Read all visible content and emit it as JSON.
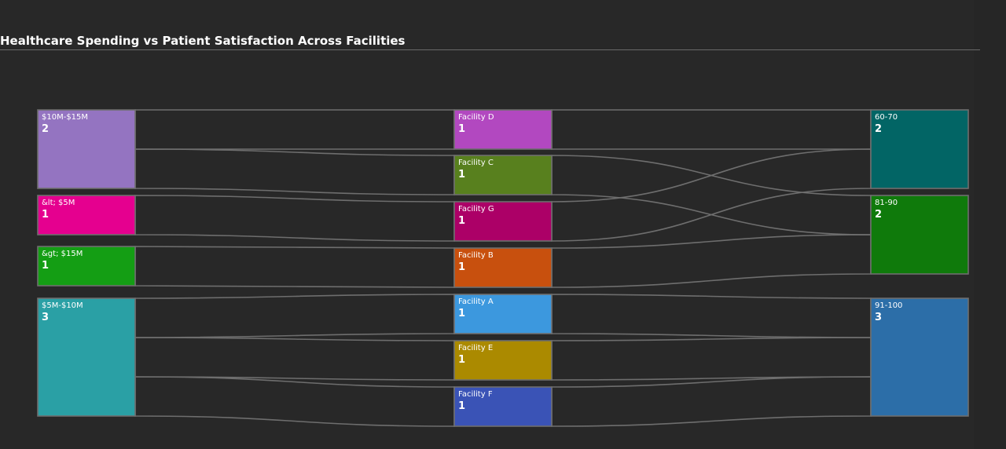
{
  "title": "Healthcare Spending vs Patient Satisfaction Across Facilities",
  "colors": {
    "background": "#282828",
    "link_stroke": "#6e6e6e",
    "node_border": "#6e6e6e"
  },
  "chart_data": {
    "type": "sankey",
    "columns": [
      "spending",
      "facility",
      "satisfaction"
    ],
    "nodes": [
      {
        "id": "s10_15",
        "label": "$10M-$15M",
        "value": 2,
        "column": 0,
        "color": "#9474c1"
      },
      {
        "id": "slt5",
        "label": "&lt; $5M",
        "value": 1,
        "column": 0,
        "color": "#e5008f"
      },
      {
        "id": "sgt15",
        "label": "&gt; $15M",
        "value": 1,
        "column": 0,
        "color": "#149e14"
      },
      {
        "id": "s5_10",
        "label": "$5M-$10M",
        "value": 3,
        "column": 0,
        "color": "#2aa0a5"
      },
      {
        "id": "fD",
        "label": "Facility D",
        "value": 1,
        "column": 1,
        "color": "#b248c0"
      },
      {
        "id": "fC",
        "label": "Facility C",
        "value": 1,
        "column": 1,
        "color": "#58801e"
      },
      {
        "id": "fG",
        "label": "Facility G",
        "value": 1,
        "column": 1,
        "color": "#ac0067"
      },
      {
        "id": "fB",
        "label": "Facility B",
        "value": 1,
        "column": 1,
        "color": "#c8500e"
      },
      {
        "id": "fA",
        "label": "Facility A",
        "value": 1,
        "column": 1,
        "color": "#3c98de"
      },
      {
        "id": "fE",
        "label": "Facility E",
        "value": 1,
        "column": 1,
        "color": "#ab8a00"
      },
      {
        "id": "fF",
        "label": "Facility F",
        "value": 1,
        "column": 1,
        "color": "#3a53b6"
      },
      {
        "id": "r60_70",
        "label": "60-70",
        "value": 2,
        "column": 2,
        "color": "#026565"
      },
      {
        "id": "r81_90",
        "label": "81-90",
        "value": 2,
        "column": 2,
        "color": "#0f7a0b"
      },
      {
        "id": "r91_100",
        "label": "91-100",
        "value": 3,
        "column": 2,
        "color": "#2c6ea8"
      }
    ],
    "links": [
      {
        "source": "s10_15",
        "target": "fD",
        "value": 1
      },
      {
        "source": "s10_15",
        "target": "fC",
        "value": 1
      },
      {
        "source": "slt5",
        "target": "fG",
        "value": 1
      },
      {
        "source": "sgt15",
        "target": "fB",
        "value": 1
      },
      {
        "source": "s5_10",
        "target": "fA",
        "value": 1
      },
      {
        "source": "s5_10",
        "target": "fE",
        "value": 1
      },
      {
        "source": "s5_10",
        "target": "fF",
        "value": 1
      },
      {
        "source": "fD",
        "target": "r60_70",
        "value": 1
      },
      {
        "source": "fC",
        "target": "r81_90",
        "value": 1
      },
      {
        "source": "fG",
        "target": "r60_70",
        "value": 1
      },
      {
        "source": "fB",
        "target": "r81_90",
        "value": 1
      },
      {
        "source": "fA",
        "target": "r91_100",
        "value": 1
      },
      {
        "source": "fE",
        "target": "r91_100",
        "value": 1
      },
      {
        "source": "fF",
        "target": "r91_100",
        "value": 1
      }
    ]
  }
}
